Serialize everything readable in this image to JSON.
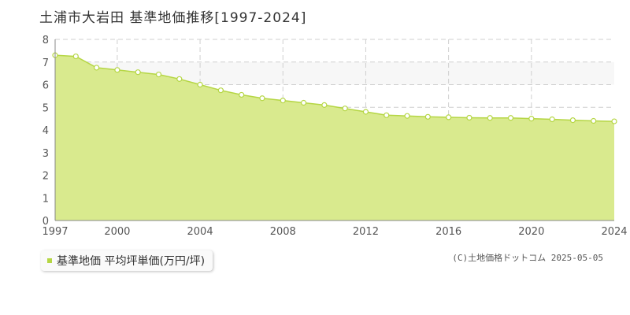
{
  "title": "土浦市大岩田 基準地価推移[1997-2024]",
  "legend_label": "基準地価 平均坪単価(万円/坪)",
  "copyright": "(C)土地価格ドットコム 2025-05-05",
  "colors": {
    "fill": "#d9ea8e",
    "line": "#b5d644",
    "marker_fill": "#ffffff",
    "highlight_band": "#f7f7f7",
    "grid": "#cfcfcf"
  },
  "chart_data": {
    "type": "area",
    "title": "土浦市大岩田 基準地価推移[1997-2024]",
    "xlabel": "",
    "ylabel": "",
    "x": [
      1997,
      1998,
      1999,
      2000,
      2001,
      2002,
      2003,
      2004,
      2005,
      2006,
      2007,
      2008,
      2009,
      2010,
      2011,
      2012,
      2013,
      2014,
      2015,
      2016,
      2017,
      2018,
      2019,
      2020,
      2021,
      2022,
      2023,
      2024
    ],
    "series": [
      {
        "name": "基準地価 平均坪単価(万円/坪)",
        "values": [
          7.3,
          7.25,
          6.75,
          6.65,
          6.55,
          6.45,
          6.25,
          6.0,
          5.75,
          5.55,
          5.4,
          5.3,
          5.2,
          5.1,
          4.95,
          4.8,
          4.65,
          4.62,
          4.58,
          4.56,
          4.54,
          4.53,
          4.53,
          4.5,
          4.47,
          4.43,
          4.4,
          4.38
        ]
      }
    ],
    "xlim": [
      1997,
      2024
    ],
    "ylim": [
      0,
      8
    ],
    "x_ticks": [
      "1997",
      "2000",
      "2004",
      "2008",
      "2012",
      "2016",
      "2020",
      "2024"
    ],
    "y_ticks": [
      "0",
      "1",
      "2",
      "3",
      "4",
      "5",
      "6",
      "7",
      "8"
    ],
    "grid": true,
    "legend_position": "bottom-left"
  }
}
